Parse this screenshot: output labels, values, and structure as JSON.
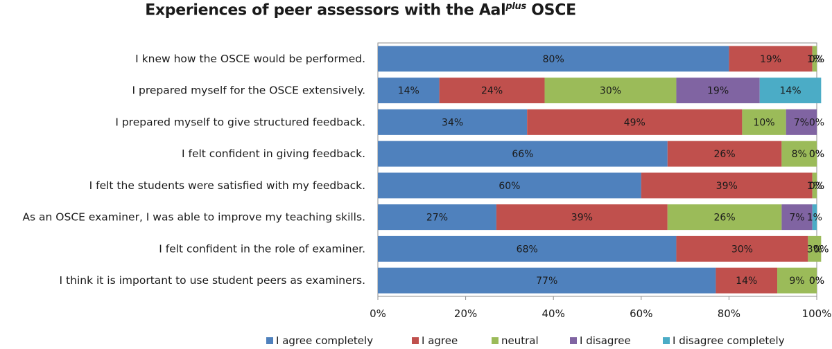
{
  "chart_data": {
    "type": "bar",
    "orientation": "horizontal",
    "stacked": "percent",
    "title": "Experiences of peer assessors with the Aal",
    "title_superscript": "plus",
    "title_suffix": " OSCE",
    "categories": [
      "I knew how the OSCE would be performed.",
      "I prepared myself for the OSCE extensively.",
      "I prepared myself to give structured feedback.",
      "I felt confident in giving feedback.",
      "I felt the students were satisfied with my feedback.",
      "As an OSCE examiner, I was able to improve my teaching skills.",
      "I felt confident in the role of examiner.",
      "I think it is important to use student peers as examiners."
    ],
    "series": [
      {
        "name": "I  agree completely",
        "color": "#4f81bd",
        "values": [
          80,
          14,
          34,
          66,
          60,
          27,
          68,
          77
        ]
      },
      {
        "name": "I agree",
        "color": "#c0504d",
        "values": [
          19,
          24,
          49,
          26,
          39,
          39,
          30,
          14
        ]
      },
      {
        "name": "neutral",
        "color": "#9bbb59",
        "values": [
          1,
          30,
          10,
          8,
          1,
          26,
          3,
          9
        ]
      },
      {
        "name": "I disagree",
        "color": "#8064a2",
        "values": [
          0,
          19,
          7,
          0,
          0,
          7,
          0,
          0
        ]
      },
      {
        "name": "I disagree completely",
        "color": "#4bacc6",
        "values": [
          0,
          14,
          0,
          0,
          0,
          1,
          0,
          0
        ]
      }
    ],
    "x_ticks": [
      "0%",
      "20%",
      "40%",
      "60%",
      "80%",
      "100%"
    ],
    "xlim": [
      0,
      100
    ],
    "xlabel": "",
    "ylabel": "",
    "legend": "bottom",
    "grid": false
  }
}
